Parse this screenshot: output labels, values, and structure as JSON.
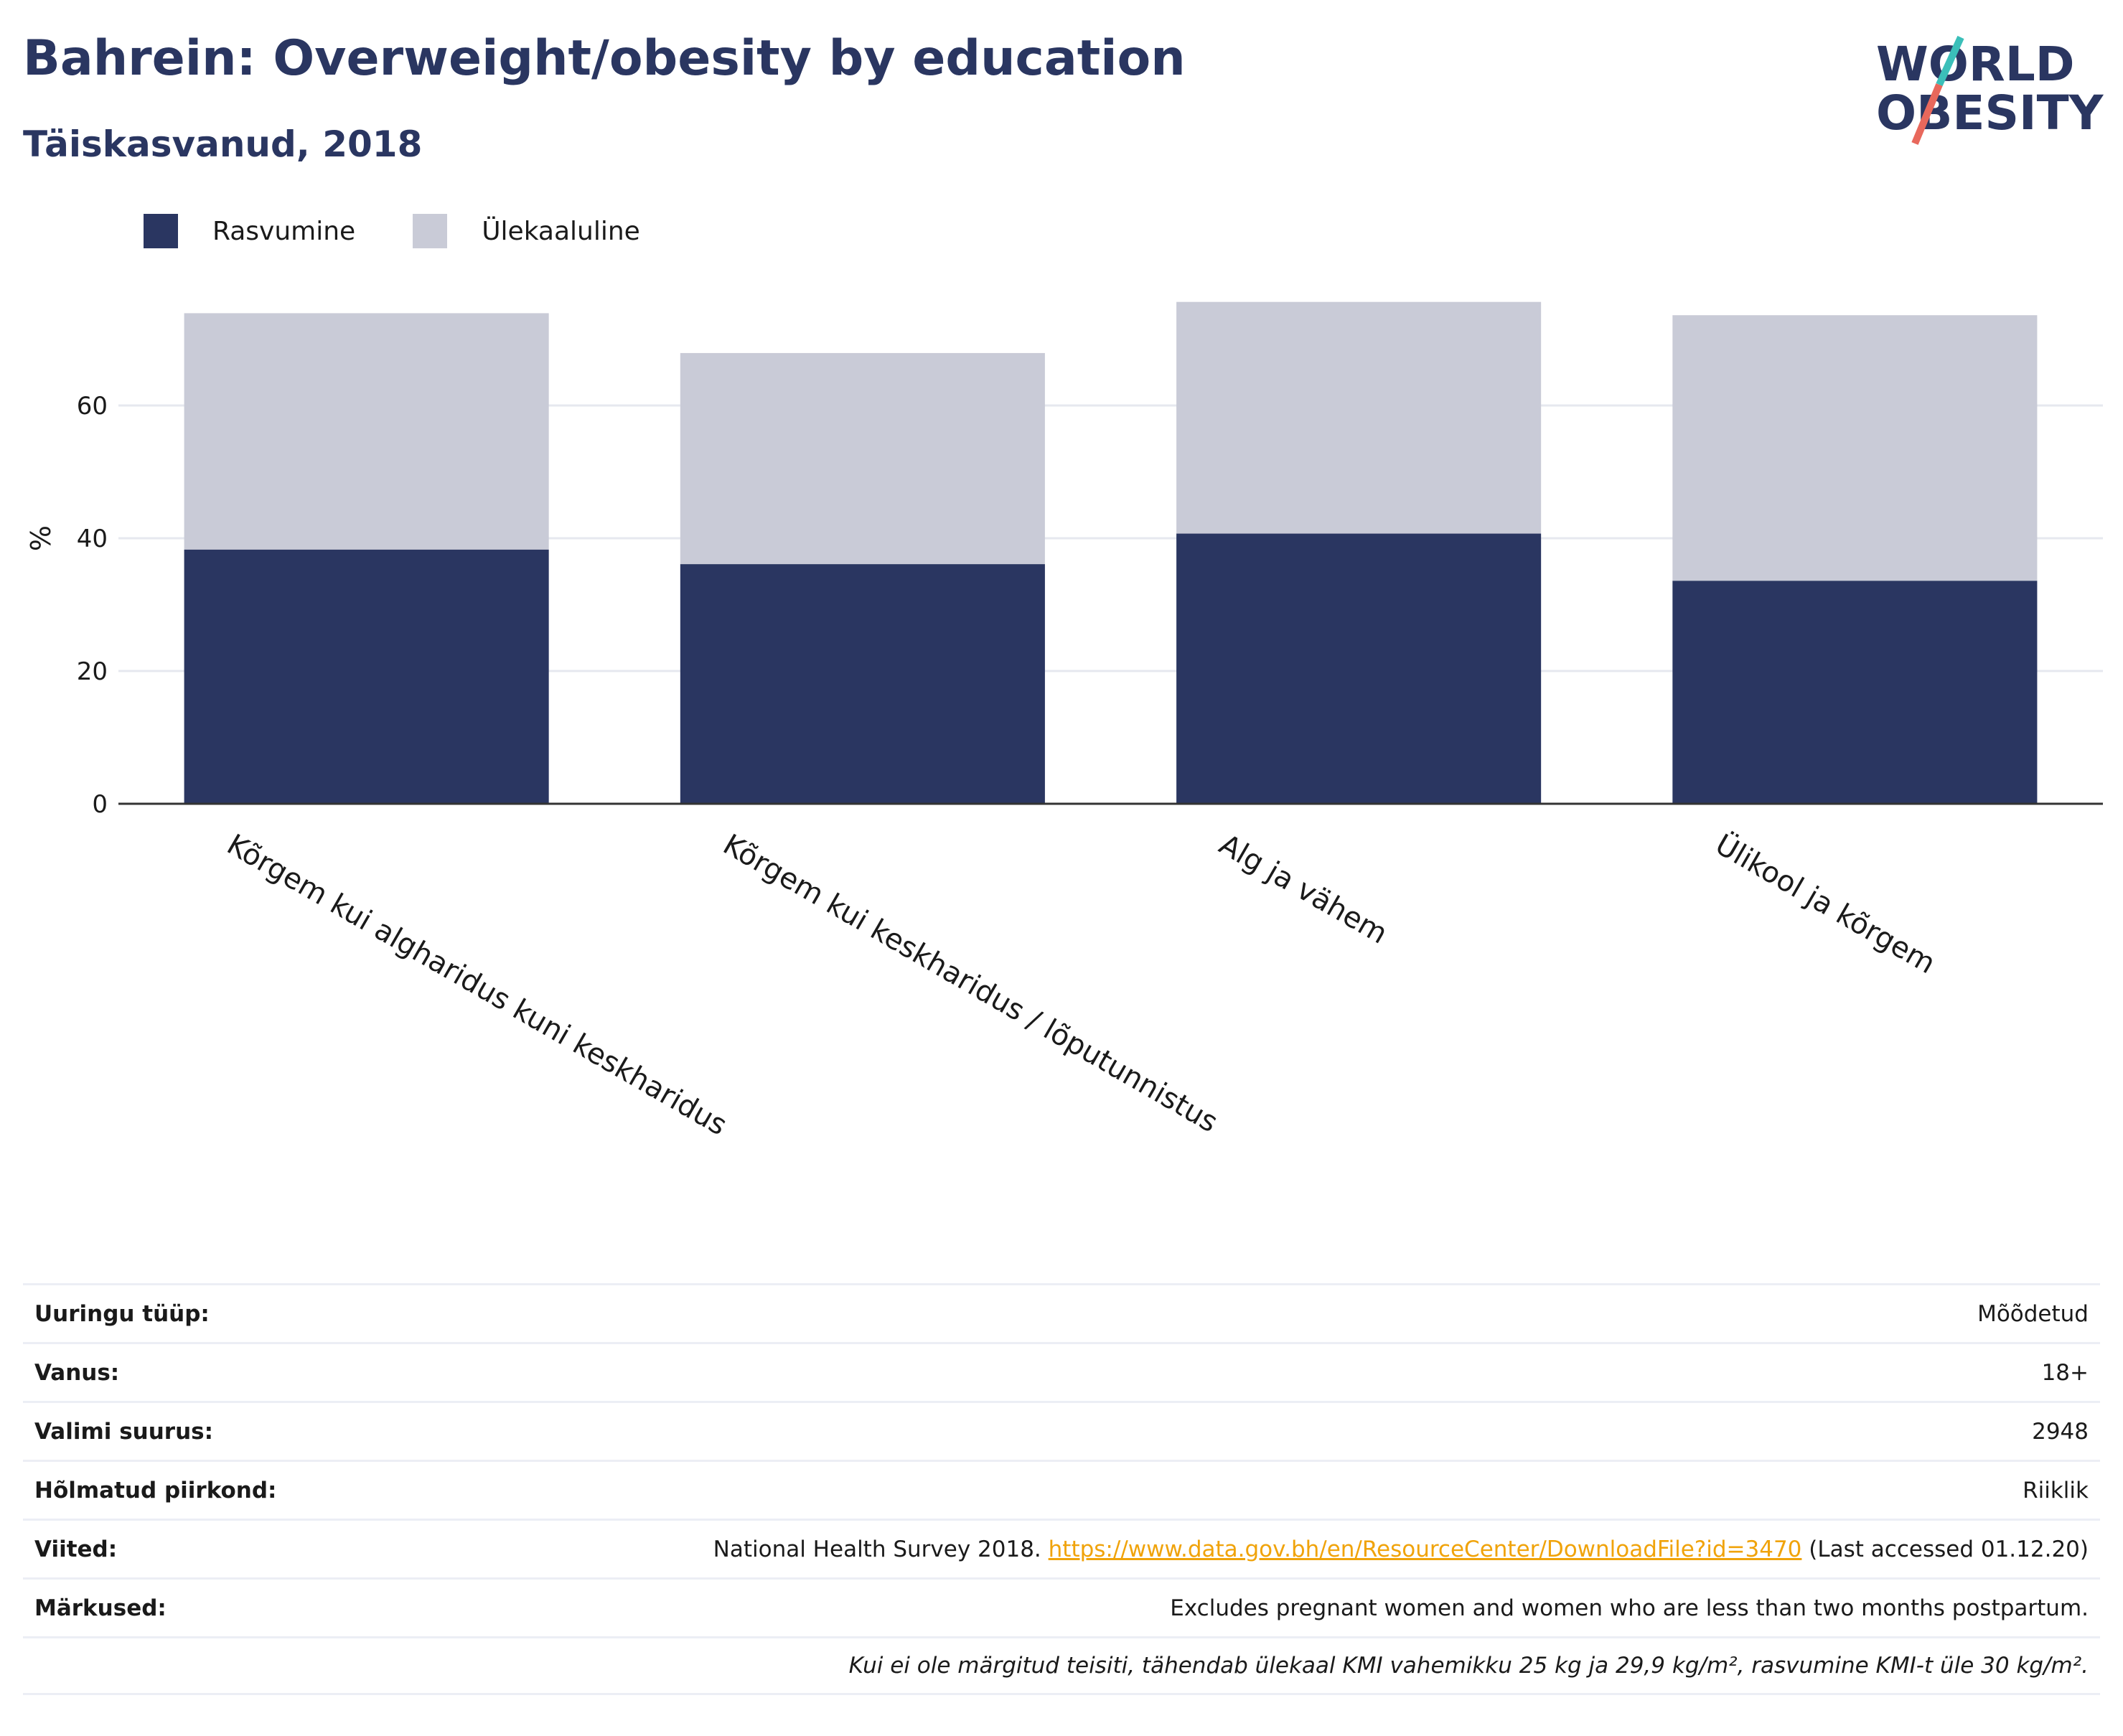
{
  "header": {
    "title": "Bahrein: Overweight/obesity by education",
    "subtitle": "Täiskasvanud, 2018"
  },
  "logo": {
    "line1": "WORLD",
    "line2": "OBESITY"
  },
  "colors": {
    "obesity": "#2a3661",
    "overweight": "#c9cbd7",
    "accent_teal": "#3bbfb9",
    "accent_coral": "#e8685c"
  },
  "chart_data": {
    "type": "bar",
    "stacked": true,
    "categories": [
      "Kõrgem kui algharidus kuni keskharidus",
      "Kõrgem kui keskharidus / lõputunnistus",
      "Alg ja vähem",
      "Ülikool ja kõrgem"
    ],
    "series": [
      {
        "name": "Rasvumine",
        "values": [
          38.3,
          36.1,
          40.7,
          33.6
        ]
      },
      {
        "name": "Ülekaaluline",
        "values": [
          35.6,
          31.8,
          34.9,
          40.0
        ]
      }
    ],
    "ylabel": "%",
    "yticks": [
      0,
      20,
      40,
      60
    ],
    "ylim": [
      0,
      80
    ],
    "grid": true,
    "legend_position": "top-left"
  },
  "meta": {
    "rows": [
      {
        "label": "Uuringu tüüp:",
        "value": "Mõõdetud"
      },
      {
        "label": "Vanus:",
        "value": "18+"
      },
      {
        "label": "Valimi suurus:",
        "value": "2948"
      },
      {
        "label": "Hõlmatud piirkond:",
        "value": "Riiklik"
      }
    ],
    "reference": {
      "label": "Viited:",
      "prefix": "National Health Survey 2018.",
      "link": "https://www.data.gov.bh/en/ResourceCenter/DownloadFile?id=3470",
      "suffix": "(Last accessed 01.12.20)"
    },
    "remarks": {
      "label": "Märkused:",
      "value": "Excludes pregnant women and women who are less than two months postpartum."
    },
    "footnote": "Kui ei ole märgitud teisiti, tähendab ülekaal KMI vahemikku 25 kg ja 29,9 kg/m², rasvumine KMI-t üle 30 kg/m²."
  }
}
